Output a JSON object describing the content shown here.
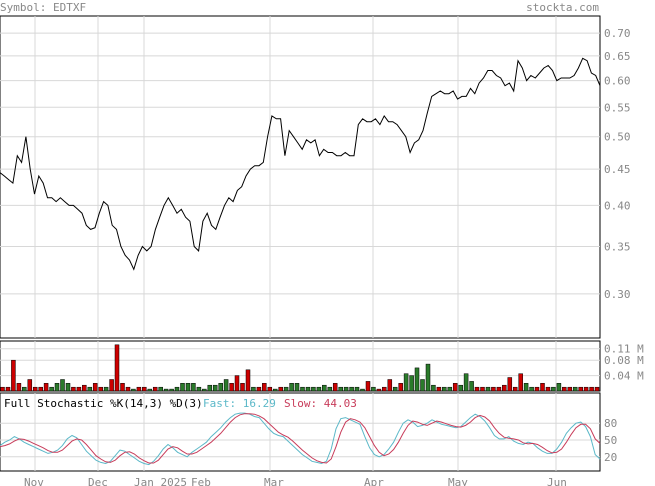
{
  "chart_data": [
    {
      "type": "line",
      "symbol_label": "Symbol: EDTXF",
      "brand": "stockta.com",
      "y_scale": "log",
      "ylim": [
        0.26,
        0.74
      ],
      "y_ticks": [
        0.7,
        0.65,
        0.6,
        0.55,
        0.5,
        0.45,
        0.4,
        0.35,
        0.3
      ],
      "y_tick_labels": [
        "0.70",
        "0.65",
        "0.60",
        "0.55",
        "0.50",
        "0.45",
        "0.40",
        "0.35",
        "0.30"
      ],
      "x_labels": [
        "Nov",
        "Dec",
        "Jan 2025",
        "Feb",
        "Mar",
        "Apr",
        "May",
        "Jun"
      ],
      "grid": true,
      "series": [
        {
          "values": [
            0.445,
            0.44,
            0.435,
            0.43,
            0.47,
            0.46,
            0.5,
            0.45,
            0.415,
            0.44,
            0.43,
            0.41,
            0.41,
            0.405,
            0.41,
            0.405,
            0.4,
            0.4,
            0.395,
            0.39,
            0.375,
            0.37,
            0.372,
            0.39,
            0.405,
            0.4,
            0.375,
            0.37,
            0.35,
            0.34,
            0.335,
            0.325,
            0.34,
            0.35,
            0.345,
            0.35,
            0.37,
            0.385,
            0.4,
            0.41,
            0.4,
            0.39,
            0.395,
            0.385,
            0.38,
            0.35,
            0.345,
            0.38,
            0.39,
            0.375,
            0.37,
            0.385,
            0.4,
            0.41,
            0.405,
            0.42,
            0.425,
            0.44,
            0.45,
            0.455,
            0.455,
            0.46,
            0.5,
            0.535,
            0.53,
            0.53,
            0.47,
            0.51,
            0.5,
            0.49,
            0.48,
            0.495,
            0.49,
            0.495,
            0.47,
            0.48,
            0.475,
            0.475,
            0.47,
            0.47,
            0.475,
            0.47,
            0.47,
            0.52,
            0.53,
            0.525,
            0.525,
            0.53,
            0.52,
            0.535,
            0.525,
            0.525,
            0.52,
            0.51,
            0.5,
            0.475,
            0.49,
            0.495,
            0.51,
            0.54,
            0.57,
            0.575,
            0.58,
            0.575,
            0.575,
            0.58,
            0.565,
            0.57,
            0.57,
            0.585,
            0.575,
            0.595,
            0.605,
            0.62,
            0.62,
            0.61,
            0.605,
            0.59,
            0.595,
            0.58,
            0.64,
            0.625,
            0.6,
            0.61,
            0.605,
            0.615,
            0.625,
            0.63,
            0.62,
            0.6,
            0.605,
            0.605,
            0.605,
            0.61,
            0.625,
            0.645,
            0.64,
            0.615,
            0.61,
            0.59
          ]
        }
      ]
    },
    {
      "type": "bar",
      "y_tick_labels": [
        "0.11 M",
        "0.08 M",
        "0.04 M"
      ],
      "y_ticks": [
        0.11,
        0.08,
        0.04
      ],
      "ylim": [
        0,
        0.13
      ],
      "up_color": "#2a7a2a",
      "down_color": "#cc0000",
      "series": [
        {
          "values": [
            0.01,
            0.01,
            0.08,
            0.02,
            0.01,
            0.03,
            0.01,
            0.01,
            0.02,
            0.01,
            0.02,
            0.03,
            0.02,
            0.01,
            0.01,
            0.015,
            0.01,
            0.02,
            0.01,
            0.01,
            0.03,
            0.12,
            0.02,
            0.01,
            0.005,
            0.01,
            0.01,
            0.005,
            0.01,
            0.01,
            0.005,
            0.005,
            0.01,
            0.02,
            0.02,
            0.02,
            0.01,
            0.005,
            0.015,
            0.015,
            0.02,
            0.03,
            0.02,
            0.04,
            0.02,
            0.055,
            0.01,
            0.01,
            0.02,
            0.01,
            0.005,
            0.01,
            0.01,
            0.02,
            0.02,
            0.01,
            0.01,
            0.01,
            0.01,
            0.015,
            0.01,
            0.02,
            0.01,
            0.01,
            0.01,
            0.01,
            0.005,
            0.025,
            0.01,
            0.005,
            0.01,
            0.03,
            0.01,
            0.02,
            0.045,
            0.04,
            0.06,
            0.03,
            0.07,
            0.015,
            0.01,
            0.01,
            0.01,
            0.02,
            0.015,
            0.045,
            0.025,
            0.01,
            0.01,
            0.01,
            0.01,
            0.01,
            0.015,
            0.035,
            0.01,
            0.045,
            0.02,
            0.01,
            0.01,
            0.02,
            0.01,
            0.01,
            0.02,
            0.01,
            0.01,
            0.01,
            0.01,
            0.01,
            0.01,
            0.01
          ],
          "direction": [
            "d",
            "d",
            "d",
            "d",
            "u",
            "d",
            "d",
            "d",
            "d",
            "u",
            "u",
            "u",
            "u",
            "d",
            "d",
            "d",
            "u",
            "d",
            "d",
            "u",
            "d",
            "d",
            "d",
            "d",
            "u",
            "d",
            "d",
            "u",
            "d",
            "u",
            "u",
            "u",
            "u",
            "u",
            "u",
            "u",
            "u",
            "u",
            "u",
            "u",
            "u",
            "u",
            "d",
            "d",
            "d",
            "d",
            "u",
            "d",
            "d",
            "d",
            "u",
            "d",
            "u",
            "u",
            "u",
            "u",
            "u",
            "u",
            "u",
            "u",
            "u",
            "d",
            "u",
            "u",
            "u",
            "u",
            "u",
            "d",
            "u",
            "d",
            "d",
            "d",
            "u",
            "d",
            "u",
            "u",
            "u",
            "u",
            "u",
            "u",
            "d",
            "u",
            "u",
            "d",
            "u",
            "u",
            "u",
            "d",
            "d",
            "u",
            "d",
            "d",
            "d",
            "d",
            "d",
            "d",
            "u",
            "u",
            "d",
            "d",
            "d",
            "u",
            "u",
            "d",
            "d",
            "u",
            "d",
            "d",
            "d",
            "d"
          ]
        }
      ]
    },
    {
      "type": "line",
      "title": "Full Stochastic %K(14,3) %D(3)",
      "fast_label": "Fast: 16.29",
      "slow_label": "Slow: 44.03",
      "fast_color": "#5bb8c8",
      "slow_color": "#c83c5a",
      "ylim": [
        0,
        100
      ],
      "y_ticks": [
        80,
        50,
        20
      ],
      "y_tick_labels": [
        "80",
        "50",
        "20"
      ],
      "series": [
        {
          "name": "Fast",
          "values": [
            40,
            46,
            50,
            56,
            52,
            46,
            42,
            38,
            34,
            30,
            26,
            28,
            32,
            40,
            52,
            58,
            54,
            42,
            30,
            22,
            14,
            10,
            8,
            12,
            22,
            32,
            30,
            24,
            18,
            12,
            8,
            6,
            12,
            22,
            34,
            42,
            36,
            28,
            24,
            20,
            28,
            34,
            40,
            46,
            56,
            64,
            72,
            82,
            90,
            96,
            98,
            98,
            96,
            92,
            90,
            80,
            70,
            62,
            58,
            56,
            48,
            40,
            32,
            24,
            18,
            12,
            10,
            8,
            12,
            34,
            70,
            88,
            90,
            86,
            82,
            78,
            56,
            36,
            24,
            20,
            24,
            34,
            46,
            64,
            80,
            86,
            82,
            74,
            76,
            80,
            86,
            82,
            78,
            76,
            74,
            72,
            74,
            82,
            90,
            96,
            92,
            84,
            72,
            58,
            52,
            52,
            56,
            48,
            44,
            42,
            46,
            44,
            36,
            30,
            26,
            26,
            34,
            46,
            62,
            72,
            80,
            82,
            74,
            56,
            24,
            16
          ]
        },
        {
          "name": "Slow",
          "values": [
            38,
            40,
            43,
            48,
            52,
            51,
            48,
            44,
            40,
            36,
            31,
            28,
            28,
            32,
            40,
            48,
            52,
            50,
            42,
            32,
            22,
            16,
            11,
            10,
            14,
            22,
            28,
            29,
            25,
            18,
            13,
            9,
            9,
            14,
            24,
            34,
            38,
            36,
            30,
            25,
            25,
            28,
            34,
            40,
            46,
            54,
            62,
            72,
            82,
            90,
            95,
            97,
            97,
            96,
            93,
            88,
            80,
            72,
            64,
            59,
            55,
            48,
            40,
            32,
            25,
            18,
            13,
            10,
            9,
            16,
            38,
            64,
            82,
            88,
            86,
            82,
            72,
            56,
            40,
            28,
            22,
            25,
            33,
            46,
            62,
            76,
            84,
            82,
            78,
            76,
            80,
            84,
            82,
            79,
            76,
            74,
            73,
            76,
            82,
            90,
            94,
            91,
            84,
            72,
            62,
            55,
            53,
            52,
            50,
            45,
            43,
            44,
            42,
            37,
            31,
            27,
            28,
            34,
            46,
            60,
            72,
            78,
            78,
            70,
            52,
            44
          ]
        }
      ]
    }
  ]
}
